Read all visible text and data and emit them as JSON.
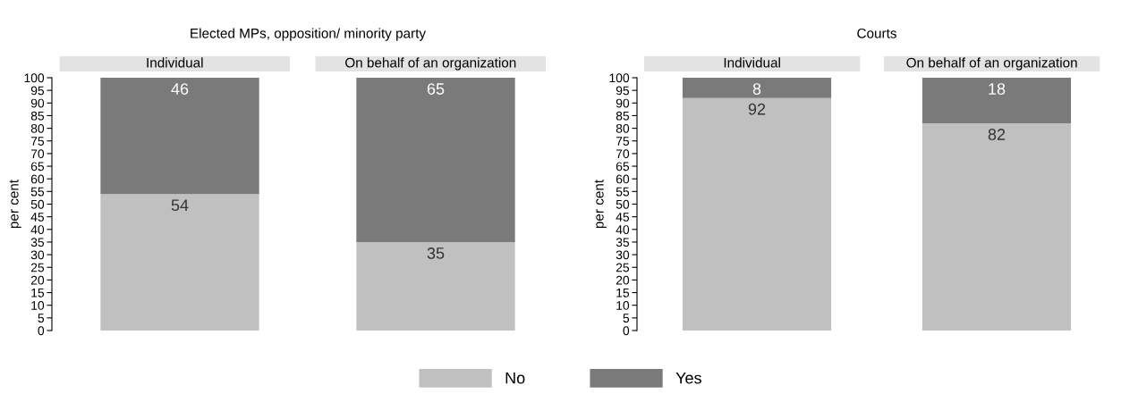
{
  "chart_data": [
    {
      "type": "bar",
      "title": "Elected MPs, opposition/ minority party",
      "ylabel": "per cent",
      "categories": [
        "Individual",
        "On behalf of an organization"
      ],
      "stacked": true,
      "ylim": [
        0,
        100
      ],
      "yticks": [
        0,
        5,
        10,
        15,
        20,
        25,
        30,
        35,
        40,
        45,
        50,
        55,
        60,
        65,
        70,
        75,
        80,
        85,
        90,
        95,
        100
      ],
      "data_labels": true,
      "legend": "bottom",
      "tick_labels": "y",
      "series": [
        {
          "name": "No",
          "color": "#c0c0c0",
          "values": [
            54,
            35
          ]
        },
        {
          "name": "Yes",
          "color": "#7a7a7a",
          "values": [
            46,
            65
          ]
        }
      ]
    },
    {
      "type": "bar",
      "title": "Courts",
      "ylabel": "per cent",
      "categories": [
        "Individual",
        "On behalf of an organization"
      ],
      "stacked": true,
      "ylim": [
        0,
        100
      ],
      "yticks": [
        0,
        5,
        10,
        15,
        20,
        25,
        30,
        35,
        40,
        45,
        50,
        55,
        60,
        65,
        70,
        75,
        80,
        85,
        90,
        95,
        100
      ],
      "data_labels": true,
      "tick_labels": "y",
      "series": [
        {
          "color": "#c0c0c0",
          "values": [
            92,
            82
          ]
        },
        {
          "color": "#7a7a7a",
          "values": [
            8,
            18
          ]
        }
      ]
    }
  ]
}
